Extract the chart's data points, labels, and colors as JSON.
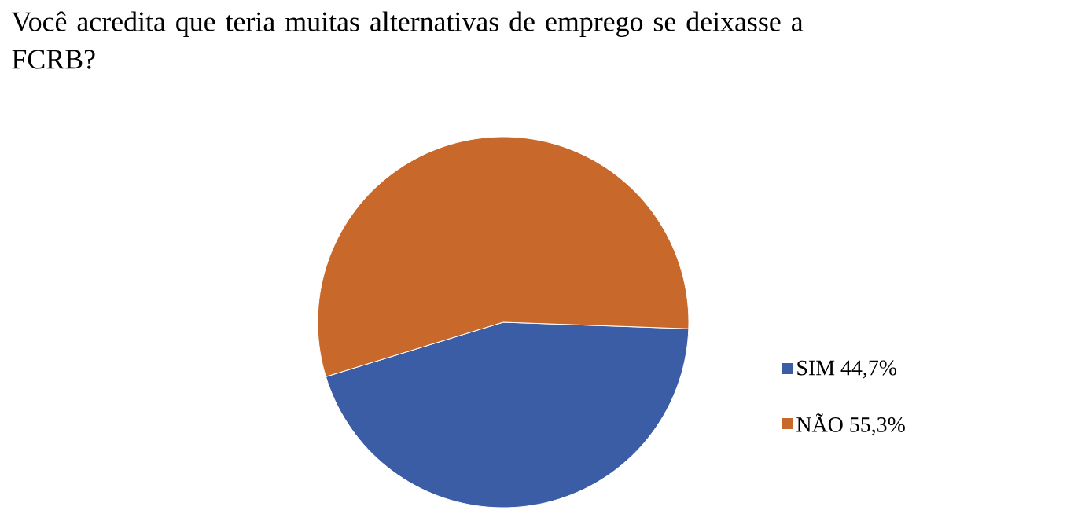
{
  "chart_data": {
    "type": "pie",
    "title": "Você acredita  que teria muitas alternativas de emprego se deixasse a FCRB?",
    "categories": [
      "SIM 44,7%",
      "NÃO 55,3%"
    ],
    "values": [
      44.7,
      55.3
    ],
    "colors": [
      "#3a5da5",
      "#c8692b"
    ],
    "legend": "right"
  }
}
